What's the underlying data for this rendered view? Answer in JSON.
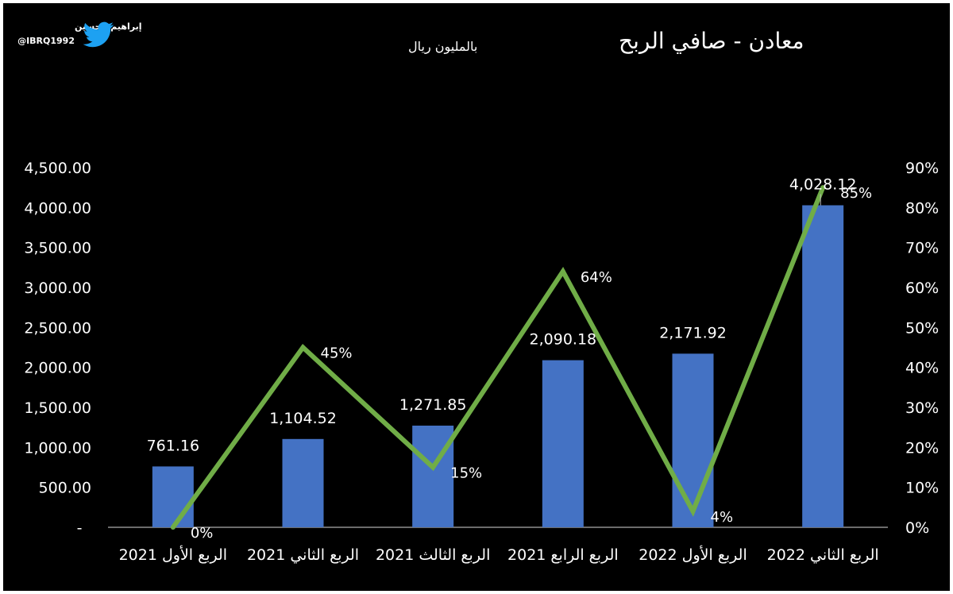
{
  "brand": {
    "name": "إبراهيم الحسين",
    "handle": "@IBRQ1992",
    "icon": "twitter-bird-icon",
    "icon_color": "#1DA1F2"
  },
  "chart_data": {
    "type": "bar",
    "title": "معادن - صافي الربح",
    "subtitle": "بالمليون ريال",
    "categories": [
      "الربع الأول 2021",
      "الربع الثاني 2021",
      "الربع الثالث 2021",
      "الربع الرابع 2021",
      "الربع الأول 2022",
      "الربع الثاني 2022"
    ],
    "series": [
      {
        "type": "bar",
        "values": [
          761.16,
          1104.52,
          1271.85,
          2090.18,
          2171.92,
          4028.12
        ],
        "labels": [
          "761.16",
          "1,104.52",
          "1,271.85",
          "2,090.18",
          "2,171.92",
          "4,028.12"
        ],
        "color": "#4472C4"
      },
      {
        "type": "line",
        "axis": "right",
        "values": [
          0,
          45,
          15,
          64,
          4,
          85
        ],
        "labels": [
          "0%",
          "45%",
          "15%",
          "64%",
          "4%",
          "85%"
        ],
        "color": "#70AD47"
      }
    ],
    "y_left": {
      "ylim": [
        0,
        4500
      ],
      "ticks": [
        0,
        500,
        1000,
        1500,
        2000,
        2500,
        3000,
        3500,
        4000,
        4500
      ],
      "tick_labels": [
        "-",
        "500.00",
        "1,000.00",
        "1,500.00",
        "2,000.00",
        "2,500.00",
        "3,000.00",
        "3,500.00",
        "4,000.00",
        "4,500.00"
      ]
    },
    "y_right": {
      "ylim": [
        0,
        90
      ],
      "ticks": [
        0,
        10,
        20,
        30,
        40,
        50,
        60,
        70,
        80,
        90
      ],
      "tick_labels": [
        "0%",
        "10%",
        "20%",
        "30%",
        "40%",
        "50%",
        "60%",
        "70%",
        "80%",
        "90%"
      ]
    },
    "grid": false,
    "background": "#000000"
  }
}
